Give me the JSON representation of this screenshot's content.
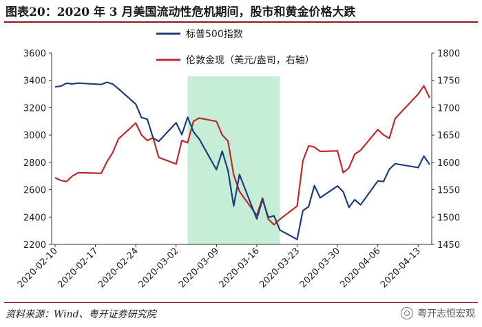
{
  "header": {
    "title": "图表20：2020 年 3 月美国流动性危机期间，股市和黄金价格大跌"
  },
  "footer": {
    "source": "资料来源：Wind、粤开证券研究院",
    "watermark": "粤开志恒宏观"
  },
  "colors": {
    "spx": "#1f3d7a",
    "gold": "#c0282d",
    "shade": "#c6edd6",
    "rule": "#8b1a1a"
  },
  "chart_data": {
    "type": "line",
    "title": "",
    "xlabel": "",
    "ylabel": "",
    "x_tick_labels": [
      "2020-02-10",
      "2020-02-17",
      "2020-02-24",
      "2020-03-02",
      "2020-03-09",
      "2020-03-16",
      "2020-03-23",
      "2020-03-30",
      "2020-04-06",
      "2020-04-13"
    ],
    "ylim_left": [
      2200,
      3600
    ],
    "ylim_right": [
      1450,
      1800
    ],
    "y_ticks_left": [
      "2200",
      "2400",
      "2600",
      "2800",
      "3000",
      "3200",
      "3400",
      "3600"
    ],
    "y_ticks_right": [
      "1450",
      "1500",
      "1550",
      "1600",
      "1650",
      "1700",
      "1750",
      "1800"
    ],
    "legend_position": "top-center",
    "shaded_period": {
      "start": "2020-03-04",
      "end": "2020-03-20"
    },
    "series": [
      {
        "name": "标普500指数",
        "axis": "left",
        "x": [
          "2020-02-10",
          "2020-02-11",
          "2020-02-12",
          "2020-02-13",
          "2020-02-14",
          "2020-02-18",
          "2020-02-19",
          "2020-02-20",
          "2020-02-21",
          "2020-02-24",
          "2020-02-25",
          "2020-02-26",
          "2020-02-27",
          "2020-02-28",
          "2020-03-02",
          "2020-03-03",
          "2020-03-04",
          "2020-03-05",
          "2020-03-06",
          "2020-03-09",
          "2020-03-10",
          "2020-03-11",
          "2020-03-12",
          "2020-03-13",
          "2020-03-16",
          "2020-03-17",
          "2020-03-18",
          "2020-03-19",
          "2020-03-20",
          "2020-03-23",
          "2020-03-24",
          "2020-03-25",
          "2020-03-26",
          "2020-03-27",
          "2020-03-30",
          "2020-03-31",
          "2020-04-01",
          "2020-04-02",
          "2020-04-03",
          "2020-04-06",
          "2020-04-07",
          "2020-04-08",
          "2020-04-09",
          "2020-04-13",
          "2020-04-14",
          "2020-04-15"
        ],
        "values": [
          3352,
          3358,
          3379,
          3374,
          3380,
          3370,
          3386,
          3373,
          3338,
          3226,
          3128,
          3116,
          2979,
          2954,
          3090,
          3003,
          3130,
          3024,
          2972,
          2747,
          2882,
          2741,
          2481,
          2711,
          2386,
          2529,
          2398,
          2409,
          2305,
          2237,
          2447,
          2476,
          2630,
          2541,
          2627,
          2585,
          2471,
          2527,
          2489,
          2664,
          2660,
          2750,
          2790,
          2762,
          2846,
          2784
        ]
      },
      {
        "name": "伦敦金现（美元/盎司，右轴）",
        "axis": "right",
        "x": [
          "2020-02-10",
          "2020-02-11",
          "2020-02-12",
          "2020-02-13",
          "2020-02-14",
          "2020-02-18",
          "2020-02-19",
          "2020-02-20",
          "2020-02-21",
          "2020-02-24",
          "2020-02-25",
          "2020-02-26",
          "2020-02-27",
          "2020-02-28",
          "2020-03-02",
          "2020-03-03",
          "2020-03-04",
          "2020-03-05",
          "2020-03-06",
          "2020-03-09",
          "2020-03-10",
          "2020-03-11",
          "2020-03-12",
          "2020-03-13",
          "2020-03-16",
          "2020-03-17",
          "2020-03-18",
          "2020-03-19",
          "2020-03-20",
          "2020-03-23",
          "2020-03-24",
          "2020-03-25",
          "2020-03-26",
          "2020-03-27",
          "2020-03-30",
          "2020-03-31",
          "2020-04-01",
          "2020-04-02",
          "2020-04-03",
          "2020-04-06",
          "2020-04-07",
          "2020-04-08",
          "2020-04-09",
          "2020-04-13",
          "2020-04-14",
          "2020-04-15"
        ],
        "values": [
          1572,
          1567,
          1565,
          1575,
          1581,
          1580,
          1601,
          1618,
          1643,
          1672,
          1650,
          1640,
          1645,
          1609,
          1597,
          1640,
          1636,
          1675,
          1681,
          1675,
          1650,
          1639,
          1577,
          1547,
          1503,
          1535,
          1496,
          1486,
          1496,
          1520,
          1603,
          1630,
          1628,
          1620,
          1621,
          1581,
          1590,
          1615,
          1622,
          1660,
          1650,
          1644,
          1680,
          1725,
          1740,
          1718
        ]
      }
    ]
  }
}
